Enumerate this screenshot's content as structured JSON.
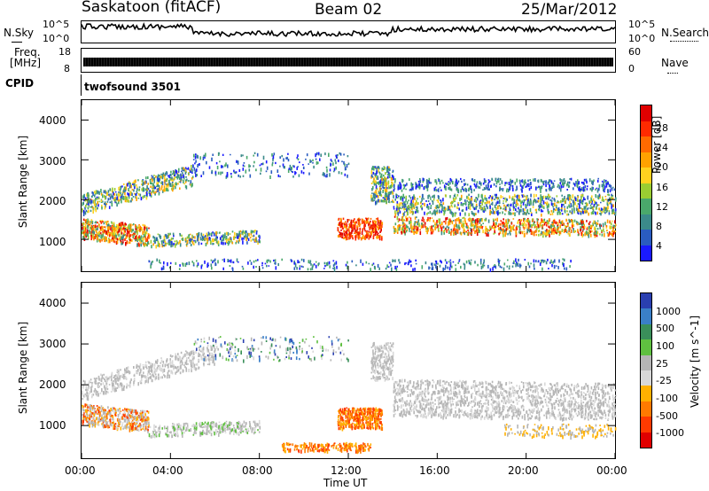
{
  "header": {
    "station": "Saskatoon (fitACF)",
    "beam": "Beam 02",
    "date": "25/Mar/2012"
  },
  "top_panels": {
    "nsky_label": "N.Sky",
    "nsky_ticks": [
      "10^5",
      "10^0"
    ],
    "nsearch_label": "N.Search",
    "nsearch_ticks": [
      "10^5",
      "10^0"
    ],
    "freq_label_1": "Freq.",
    "freq_label_2": "[MHz]",
    "freq_ticks": [
      "18",
      "8"
    ],
    "nave_label": "Nave",
    "nave_ticks": [
      "60",
      "0"
    ],
    "cpid_label": "CPID",
    "cpid_value": "twofsound 3501"
  },
  "colors": {
    "power_scale": [
      "#1a1aff",
      "#2a5cc0",
      "#3b8a8a",
      "#4aa86b",
      "#9acd32",
      "#ffd21f",
      "#ffa200",
      "#ff6a00",
      "#ff2a00",
      "#e00000"
    ],
    "velocity_scale": [
      "#2a3fb0",
      "#3a7fc8",
      "#3a8f5a",
      "#5fc040",
      "#b5b5b5",
      "#d8d8d8",
      "#ffb000",
      "#ff7a00",
      "#ff3a00",
      "#e00000"
    ],
    "ground_scatter": "#b8b8b8"
  },
  "chart_data": [
    {
      "type": "heatmap",
      "name": "power",
      "ylabel": "Slant Range [km]",
      "xlabel": "",
      "yticks": [
        "1000",
        "2000",
        "3000",
        "4000"
      ],
      "ylim": [
        200,
        4500
      ],
      "xlim": [
        0,
        24
      ],
      "colorbar_label": "Power [dB]",
      "colorbar_ticks": [
        "4",
        "8",
        "12",
        "16",
        "20",
        "24",
        "28"
      ],
      "colorbar_range": [
        0,
        30
      ]
    },
    {
      "type": "heatmap",
      "name": "velocity",
      "ylabel": "Slant Range [km]",
      "xlabel": "Time UT",
      "xticks": [
        "00:00",
        "04:00",
        "08:00",
        "12:00",
        "16:00",
        "20:00",
        "00:00"
      ],
      "yticks": [
        "1000",
        "2000",
        "3000",
        "4000"
      ],
      "ylim": [
        200,
        4500
      ],
      "xlim": [
        0,
        24
      ],
      "colorbar_label": "Velocity [m s^-1]",
      "colorbar_ticks": [
        "1000",
        "500",
        "100",
        "25",
        "-25",
        "-100",
        "-500",
        "-1000"
      ],
      "colorbar_range": [
        -1000,
        1000
      ]
    }
  ]
}
